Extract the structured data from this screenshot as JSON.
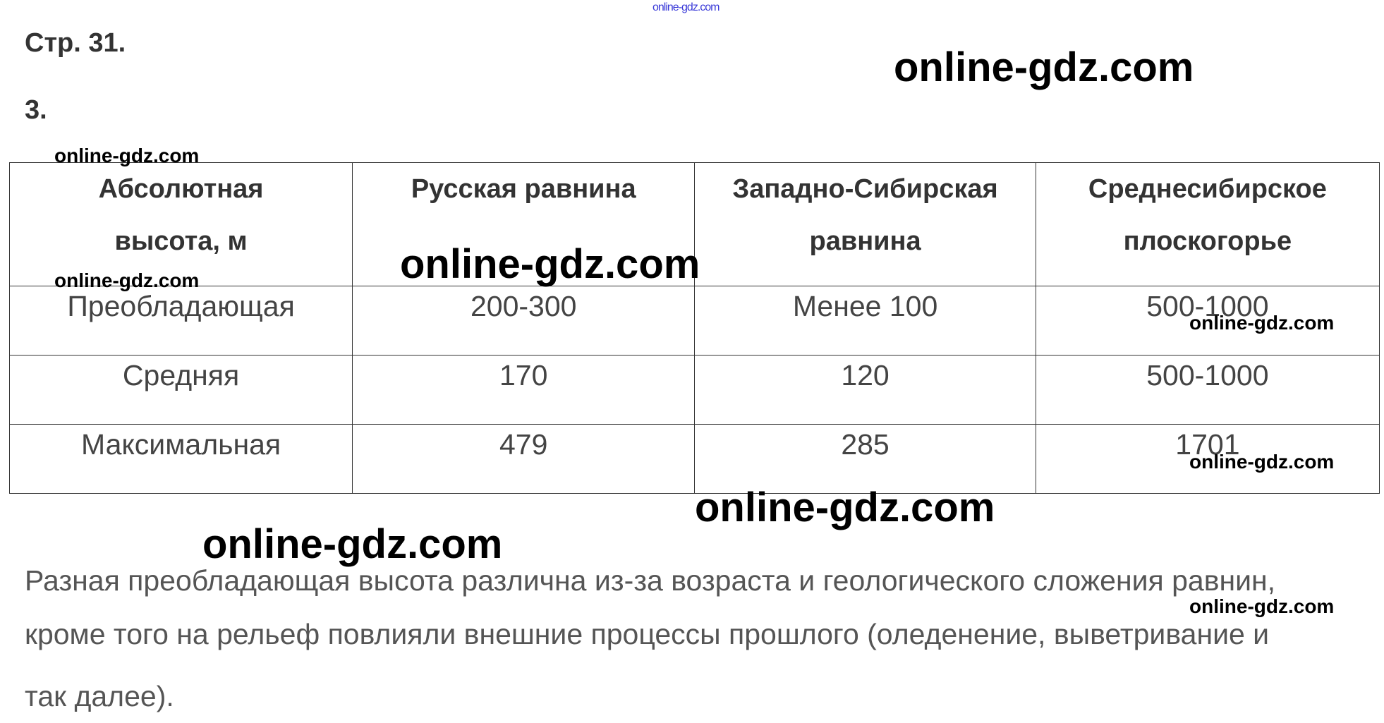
{
  "watermark": "online-gdz.com",
  "page_heading": "Стр. 31.",
  "task_number": "3.",
  "table": {
    "headers": [
      [
        "Абсолютная",
        "высота, м"
      ],
      [
        "Русская равнина",
        ""
      ],
      [
        "Западно-Сибирская",
        "равнина"
      ],
      [
        "Среднесибирское",
        "плоскогорье"
      ]
    ],
    "rows": [
      [
        "Преобладающая",
        "200-300",
        "Менее 100",
        "500-1000"
      ],
      [
        "Средняя",
        "170",
        "120",
        "500-1000"
      ],
      [
        "Максимальная",
        "479",
        "285",
        "1701"
      ]
    ]
  },
  "paragraph": {
    "lines": [
      "Разная преобладающая высота различна из-за возраста и геологического сложения равнин,",
      "кроме того на рельеф повлияли внешние процессы прошлого (оледенение, выветривание и",
      "так далее)."
    ]
  },
  "colors": {
    "text": "#333333",
    "watermark_top": "#3a3ad8"
  }
}
